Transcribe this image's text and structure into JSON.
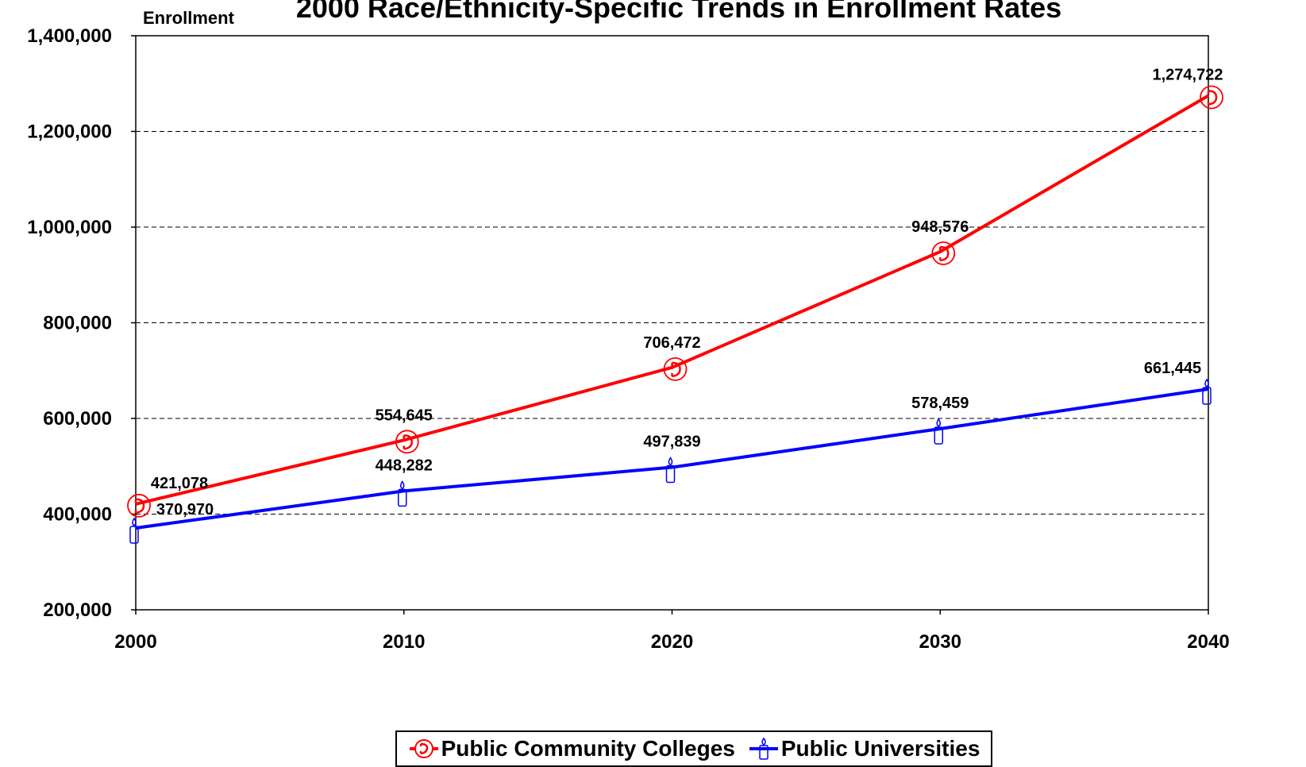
{
  "chart_data": {
    "type": "line",
    "title": "2000 Race/Ethnicity-Specific Trends in Enrollment Rates",
    "ylabel": "Enrollment",
    "xlabel": "",
    "x": [
      2000,
      2010,
      2020,
      2030,
      2040
    ],
    "x_tick_labels": [
      "2000",
      "2010",
      "2020",
      "2030",
      "2040"
    ],
    "ylim": [
      200000,
      1400000
    ],
    "y_ticks": [
      200000,
      400000,
      600000,
      800000,
      1000000,
      1200000,
      1400000
    ],
    "y_tick_labels": [
      "200,000",
      "400,000",
      "600,000",
      "800,000",
      "1,000,000",
      "1,200,000",
      "1,400,000"
    ],
    "grid": "horizontal dashed",
    "legend_position": "bottom",
    "series": [
      {
        "name": "Public Community Colleges",
        "color": "#ff0000",
        "marker": "telephone-circle-icon",
        "values": [
          421078,
          554645,
          706472,
          948576,
          1274722
        ],
        "labels": [
          "421,078",
          "554,645",
          "706,472",
          "948,576",
          "1,274,722"
        ]
      },
      {
        "name": "Public Universities",
        "color": "#0000ff",
        "marker": "candle-icon",
        "values": [
          370970,
          448282,
          497839,
          578459,
          661445
        ],
        "labels": [
          "370,970",
          "448,282",
          "497,839",
          "578,459",
          "661,445"
        ]
      }
    ]
  }
}
